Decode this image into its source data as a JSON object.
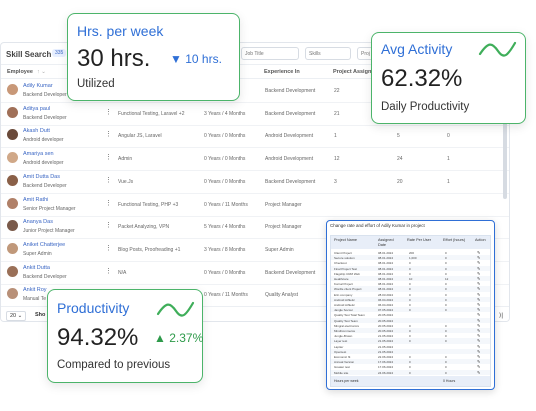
{
  "table": {
    "title": "Skill Search",
    "count": "335",
    "filters": {
      "job_title": "Job Title",
      "skills": "Skills",
      "project": "Proj"
    },
    "columns": {
      "employee": "Employee",
      "sort": "↑ ⌄",
      "experience": "Experience In",
      "project_assign": "Project Assign"
    },
    "rows": [
      {
        "name": "Adily Kumar",
        "role": "Backend Developer",
        "skills": "",
        "exp": "",
        "area": "Backend Development",
        "p1": "22",
        "p2": "",
        "p3": ""
      },
      {
        "name": "Aditya paul",
        "role": "Backend Developer",
        "skills": "Functional Testing, Laravel +2",
        "exp": "3 Years / 4 Months",
        "area": "Backend Development",
        "p1": "21",
        "p2": "",
        "p3": ""
      },
      {
        "name": "Akash Dutt",
        "role": "Android developer",
        "skills": "Angular JS, Laravel",
        "exp": "0 Years / 0 Months",
        "area": "Android Development",
        "p1": "1",
        "p2": "5",
        "p3": "0"
      },
      {
        "name": "Amariya sen",
        "role": "Android developer",
        "skills": "Admin",
        "exp": "0 Years / 0 Months",
        "area": "Android Development",
        "p1": "12",
        "p2": "24",
        "p3": "1"
      },
      {
        "name": "Amit Dutta Das",
        "role": "Backend Developer",
        "skills": "Vue.Js",
        "exp": "0 Years / 0 Months",
        "area": "Backend Development",
        "p1": "3",
        "p2": "20",
        "p3": "1"
      },
      {
        "name": "Amit Rathi",
        "role": "Senior Project Manager",
        "skills": "Functional Testing, PHP +3",
        "exp": "0 Years / 11 Months",
        "area": "Project Manager",
        "p1": "",
        "p2": "",
        "p3": ""
      },
      {
        "name": "Ananya Das",
        "role": "Junior Project Manager",
        "skills": "Packet Analyzing, VPN",
        "exp": "5 Years / 4 Months",
        "area": "Project Manager",
        "p1": "",
        "p2": "",
        "p3": ""
      },
      {
        "name": "Aniket Chatterjee",
        "role": "Super Admin",
        "skills": "Blog Posts, Proofreading +1",
        "exp": "3 Years / 8 Months",
        "area": "Super Admin",
        "p1": "",
        "p2": "",
        "p3": ""
      },
      {
        "name": "Ankit Dutta",
        "role": "Backend Developer",
        "skills": "N/A",
        "exp": "0 Years / 0 Months",
        "area": "Backend Development",
        "p1": "",
        "p2": "",
        "p3": ""
      },
      {
        "name": "Ankit Roy",
        "role": "Manual Te",
        "skills": "",
        "exp": "0 Years / 11 Months",
        "area": "Quality Analyst",
        "p1": "",
        "p2": "",
        "p3": ""
      }
    ],
    "pager": {
      "page_size": "20 ⌄",
      "show": "Sho",
      "next": "⟩|"
    }
  },
  "cards": {
    "hours": {
      "title": "Hrs. per week",
      "value": "30 hrs.",
      "delta": "▼ 10 hrs.",
      "sub": "Utilized"
    },
    "activity": {
      "title": "Avg Activity",
      "value": "62.32%",
      "sub": "Daily Productivity"
    },
    "productivity": {
      "title": "Productivity",
      "value": "94.32%",
      "delta": "▲ 2.37%",
      "sub": "Compared to previous"
    }
  },
  "modal": {
    "title": "Change rate and effort of Adily Kumar in project",
    "headers": [
      "Project Name",
      "Assigned Date",
      "Rate Per User",
      "Effort (hours)",
      "Action"
    ],
    "rows": [
      {
        "name": "Client Project",
        "date": "08.01.2024",
        "rate": "200",
        "effort": "0"
      },
      {
        "name": "Secure solution",
        "date": "08.01.2024",
        "rate": "1,000",
        "effort": "0"
      },
      {
        "name": "Checkout",
        "date": "08.01.2024",
        "rate": "0",
        "effort": "0"
      },
      {
        "name": "Final Project Test",
        "date": "08.01.2024",
        "rate": "0",
        "effort": "0"
      },
      {
        "name": "Flagship CRM Web",
        "date": "08.01.2024",
        "rate": "0",
        "effort": "0"
      },
      {
        "name": "Healthcare",
        "date": "08.01.2024",
        "rate": "10",
        "effort": "12"
      },
      {
        "name": "Kornal Project",
        "date": "08.01.2024",
        "rate": "0",
        "effort": "0"
      },
      {
        "name": "Wordle client Project",
        "date": "08.01.2024",
        "rate": "0",
        "effort": "0"
      },
      {
        "name": "Erin company",
        "date": "28.03.2024",
        "rate": "0",
        "effort": "0"
      },
      {
        "name": "Android Athletic",
        "date": "06.04.2024",
        "rate": "0",
        "effort": "0"
      },
      {
        "name": "Android Athletic",
        "date": "06.04.2024",
        "rate": "0",
        "effort": "0"
      },
      {
        "name": "Jangle Soccer",
        "date": "07.05.2024",
        "rate": "0",
        "effort": "0"
      },
      {
        "name": "Quality Test Total Team",
        "date": "20.05.2024",
        "rate": "",
        "effort": ""
      },
      {
        "name": "Quality Test Team",
        "date": "20.05.2024",
        "rate": "",
        "effort": ""
      },
      {
        "name": "Mingral electronics",
        "date": "20.05.2024",
        "rate": "0",
        "effort": "0"
      },
      {
        "name": "MindCommerce",
        "date": "20.05.2024",
        "rate": "0",
        "effort": "0"
      },
      {
        "name": "Jungle-Brown",
        "date": "21.05.2024",
        "rate": "0",
        "effort": "0"
      },
      {
        "name": "Layer test",
        "date": "21.05.2024",
        "rate": "0",
        "effort": "0"
      },
      {
        "name": "Laptter",
        "date": "21.05.2024",
        "rate": "",
        "effort": ""
      },
      {
        "name": "Opentest",
        "date": "21.05.2024",
        "rate": "",
        "effort": ""
      },
      {
        "name": "Economic fit",
        "date": "22.06.2024",
        "rate": "0",
        "effort": "0"
      },
      {
        "name": "Annual Version",
        "date": "17.06.2024",
        "rate": "0",
        "effort": "0"
      },
      {
        "name": "Greater test",
        "date": "17.06.2024",
        "rate": "0",
        "effort": "0"
      },
      {
        "name": "Mobile site",
        "date": "24.06.2024",
        "rate": "0",
        "effort": "0"
      }
    ],
    "footer": {
      "label": "Hours per week",
      "value": "0 Hours"
    }
  },
  "colors": {
    "accent_blue": "#2f6fd6",
    "accent_green": "#4cb46a",
    "delta_green": "#2e9a4a"
  }
}
